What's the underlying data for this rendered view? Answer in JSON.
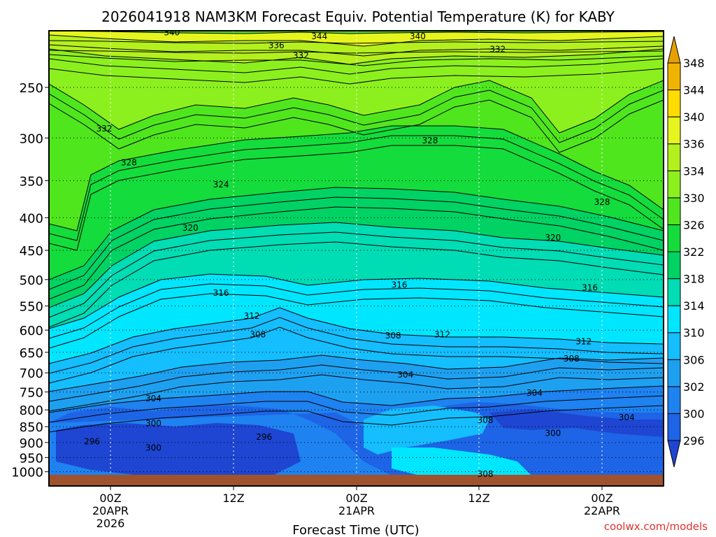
{
  "chart_data": {
    "type": "heatmap",
    "title": "2026041918 NAM3KM Forecast Equiv. Potential Temperature (K) for KABY",
    "xlabel": "Forecast Time (UTC)",
    "ylabel": "",
    "credit": "coolwx.com/models",
    "y_axis": {
      "scale": "log-pressure",
      "range": [
        1050,
        200
      ],
      "ticks": [
        "250",
        "300",
        "350",
        "400",
        "450",
        "500",
        "550",
        "600",
        "650",
        "700",
        "750",
        "800",
        "850",
        "900",
        "950",
        "1000"
      ]
    },
    "x_axis": {
      "ticks": [
        {
          "top": "00Z",
          "mid": "20APR",
          "bot": "2026"
        },
        {
          "top": "12Z",
          "mid": "",
          "bot": ""
        },
        {
          "top": "00Z",
          "mid": "21APR",
          "bot": ""
        },
        {
          "top": "12Z",
          "mid": "",
          "bot": ""
        },
        {
          "top": "00Z",
          "mid": "22APR",
          "bot": ""
        }
      ]
    },
    "colorbar": {
      "labels": [
        "296",
        "300",
        "302",
        "306",
        "310",
        "314",
        "318",
        "322",
        "326",
        "330",
        "334",
        "336",
        "340",
        "344",
        "348"
      ],
      "colors": [
        "#1e46d2",
        "#1e64e6",
        "#1e82f0",
        "#1ea0f0",
        "#14beff",
        "#00e6ff",
        "#00dcb4",
        "#00d264",
        "#14dc3c",
        "#50e61e",
        "#8cf01e",
        "#b4f01e",
        "#e6f51e",
        "#ffdc00",
        "#f0b400",
        "#e6a000"
      ]
    },
    "contour_labels": [
      {
        "text": "340",
        "x": 20,
        "p": 205
      },
      {
        "text": "344",
        "x": 44,
        "p": 208
      },
      {
        "text": "340",
        "x": 60,
        "p": 208
      },
      {
        "text": "336",
        "x": 37,
        "p": 215
      },
      {
        "text": "332",
        "x": 41,
        "p": 223
      },
      {
        "text": "332",
        "x": 73,
        "p": 218
      },
      {
        "text": "332",
        "x": 9,
        "p": 290
      },
      {
        "text": "328",
        "x": 62,
        "p": 303
      },
      {
        "text": "328",
        "x": 13,
        "p": 328
      },
      {
        "text": "324",
        "x": 28,
        "p": 355
      },
      {
        "text": "328",
        "x": 90,
        "p": 378
      },
      {
        "text": "320",
        "x": 23,
        "p": 415
      },
      {
        "text": "320",
        "x": 82,
        "p": 430
      },
      {
        "text": "316",
        "x": 28,
        "p": 525
      },
      {
        "text": "316",
        "x": 57,
        "p": 510
      },
      {
        "text": "316",
        "x": 88,
        "p": 515
      },
      {
        "text": "312",
        "x": 33,
        "p": 570
      },
      {
        "text": "312",
        "x": 64,
        "p": 610
      },
      {
        "text": "312",
        "x": 87,
        "p": 625
      },
      {
        "text": "308",
        "x": 34,
        "p": 610
      },
      {
        "text": "308",
        "x": 56,
        "p": 612
      },
      {
        "text": "308",
        "x": 85,
        "p": 665
      },
      {
        "text": "304",
        "x": 58,
        "p": 705
      },
      {
        "text": "304",
        "x": 17,
        "p": 768
      },
      {
        "text": "304",
        "x": 79,
        "p": 753
      },
      {
        "text": "304",
        "x": 94,
        "p": 822
      },
      {
        "text": "308",
        "x": 71,
        "p": 830
      },
      {
        "text": "300",
        "x": 17,
        "p": 840
      },
      {
        "text": "300",
        "x": 82,
        "p": 870
      },
      {
        "text": "296",
        "x": 7,
        "p": 897
      },
      {
        "text": "296",
        "x": 35,
        "p": 882
      },
      {
        "text": "300",
        "x": 17,
        "p": 917
      },
      {
        "text": "308",
        "x": 71,
        "p": 1008
      }
    ],
    "grid": true,
    "legend": "right"
  }
}
